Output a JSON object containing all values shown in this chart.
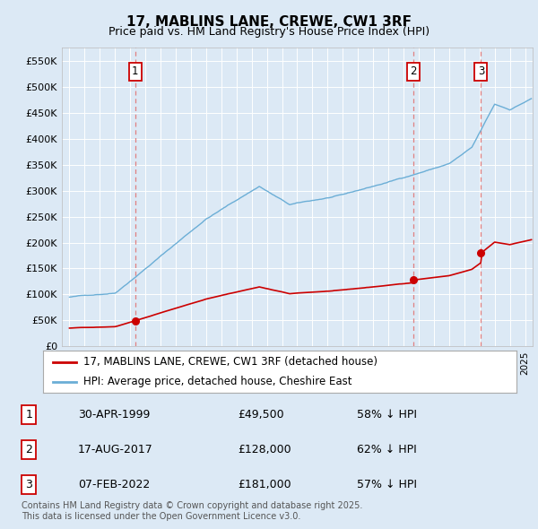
{
  "title": "17, MABLINS LANE, CREWE, CW1 3RF",
  "subtitle": "Price paid vs. HM Land Registry's House Price Index (HPI)",
  "background_color": "#dce9f5",
  "plot_bg_color": "#dce9f5",
  "ylim": [
    0,
    575000
  ],
  "yticks": [
    0,
    50000,
    100000,
    150000,
    200000,
    250000,
    300000,
    350000,
    400000,
    450000,
    500000,
    550000
  ],
  "ytick_labels": [
    "£0",
    "£50K",
    "£100K",
    "£150K",
    "£200K",
    "£250K",
    "£300K",
    "£350K",
    "£400K",
    "£450K",
    "£500K",
    "£550K"
  ],
  "hpi_color": "#6baed6",
  "price_color": "#cc0000",
  "sale_marker_color": "#cc0000",
  "dashed_line_color": "#e08080",
  "annotation_border_color": "#cc0000",
  "legend_label_red": "17, MABLINS LANE, CREWE, CW1 3RF (detached house)",
  "legend_label_blue": "HPI: Average price, detached house, Cheshire East",
  "sale1_date": 1999.33,
  "sale1_price": 49500,
  "sale1_label": "1",
  "sale2_date": 2017.63,
  "sale2_price": 128000,
  "sale2_label": "2",
  "sale3_date": 2022.1,
  "sale3_price": 181000,
  "sale3_label": "3",
  "table_rows": [
    [
      "1",
      "30-APR-1999",
      "£49,500",
      "58% ↓ HPI"
    ],
    [
      "2",
      "17-AUG-2017",
      "£128,000",
      "62% ↓ HPI"
    ],
    [
      "3",
      "07-FEB-2022",
      "£181,000",
      "57% ↓ HPI"
    ]
  ],
  "footer": "Contains HM Land Registry data © Crown copyright and database right 2025.\nThis data is licensed under the Open Government Licence v3.0.",
  "xlim_start": 1994.5,
  "xlim_end": 2025.5
}
